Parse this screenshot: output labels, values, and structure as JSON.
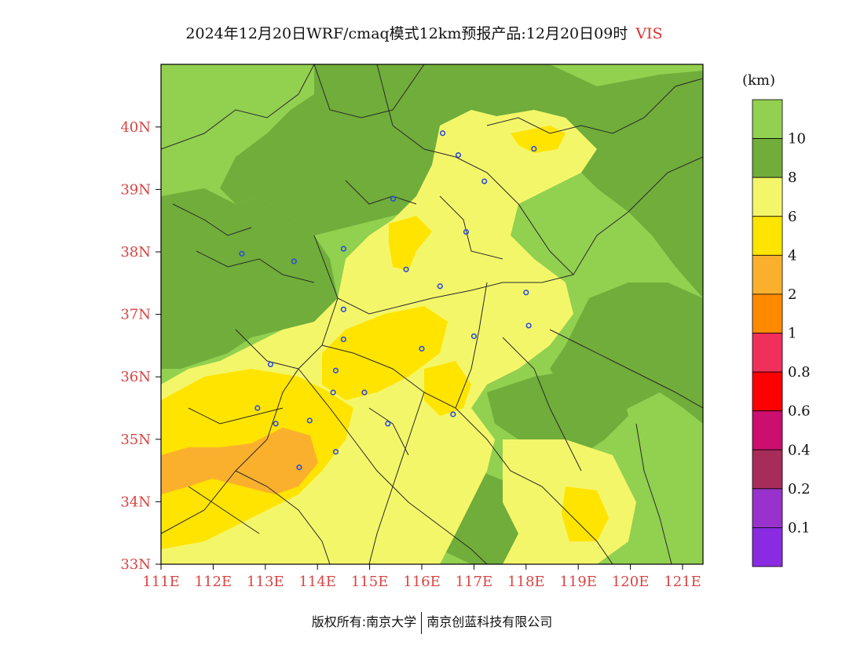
{
  "title": {
    "main": "2024年12月20日WRF/cmaq模式12km预报产品:12月20日09时",
    "variable": "VIS"
  },
  "colorbar": {
    "unit": "(km)",
    "bins": [
      {
        "color": "#92d050"
      },
      {
        "color": "#70ad3a"
      },
      {
        "color": "#f4f66a"
      },
      {
        "color": "#ffe400"
      },
      {
        "color": "#fbb02d"
      },
      {
        "color": "#ff8a00"
      },
      {
        "color": "#f0305a"
      },
      {
        "color": "#ff0000"
      },
      {
        "color": "#cc0e6e"
      },
      {
        "color": "#a82c5a"
      },
      {
        "color": "#9932cc"
      },
      {
        "color": "#8a2be2"
      }
    ],
    "labels": [
      "10",
      "8",
      "6",
      "4",
      "2",
      "1",
      "0.8",
      "0.6",
      "0.4",
      "0.2",
      "0.1"
    ]
  },
  "axes": {
    "lon_labels": [
      "111E",
      "112E",
      "113E",
      "114E",
      "115E",
      "116E",
      "117E",
      "118E",
      "119E",
      "120E",
      "121E"
    ],
    "lat_labels": [
      "40N",
      "39N",
      "38N",
      "37N",
      "36N",
      "35N",
      "34N",
      "33N"
    ]
  },
  "stations": [
    {
      "lon": 116.4,
      "lat": 39.9
    },
    {
      "lon": 116.7,
      "lat": 39.55
    },
    {
      "lon": 117.2,
      "lat": 39.13
    },
    {
      "lon": 118.15,
      "lat": 39.65
    },
    {
      "lon": 115.45,
      "lat": 38.85
    },
    {
      "lon": 116.85,
      "lat": 38.32
    },
    {
      "lon": 112.55,
      "lat": 37.97
    },
    {
      "lon": 113.55,
      "lat": 37.85
    },
    {
      "lon": 114.5,
      "lat": 38.05
    },
    {
      "lon": 115.7,
      "lat": 37.72
    },
    {
      "lon": 116.35,
      "lat": 37.45
    },
    {
      "lon": 118.0,
      "lat": 37.35
    },
    {
      "lon": 114.5,
      "lat": 37.08
    },
    {
      "lon": 114.5,
      "lat": 36.6
    },
    {
      "lon": 116.0,
      "lat": 36.45
    },
    {
      "lon": 117.0,
      "lat": 36.65
    },
    {
      "lon": 118.05,
      "lat": 36.82
    },
    {
      "lon": 113.1,
      "lat": 36.2
    },
    {
      "lon": 114.35,
      "lat": 36.1
    },
    {
      "lon": 114.3,
      "lat": 35.75
    },
    {
      "lon": 114.9,
      "lat": 35.75
    },
    {
      "lon": 112.85,
      "lat": 35.5
    },
    {
      "lon": 113.2,
      "lat": 35.25
    },
    {
      "lon": 113.85,
      "lat": 35.3
    },
    {
      "lon": 115.35,
      "lat": 35.25
    },
    {
      "lon": 116.6,
      "lat": 35.4
    },
    {
      "lon": 114.35,
      "lat": 34.8
    },
    {
      "lon": 113.65,
      "lat": 34.55
    }
  ],
  "footer": {
    "left": "版权所有:南京大学",
    "right": "南京创蓝科技有限公司"
  }
}
